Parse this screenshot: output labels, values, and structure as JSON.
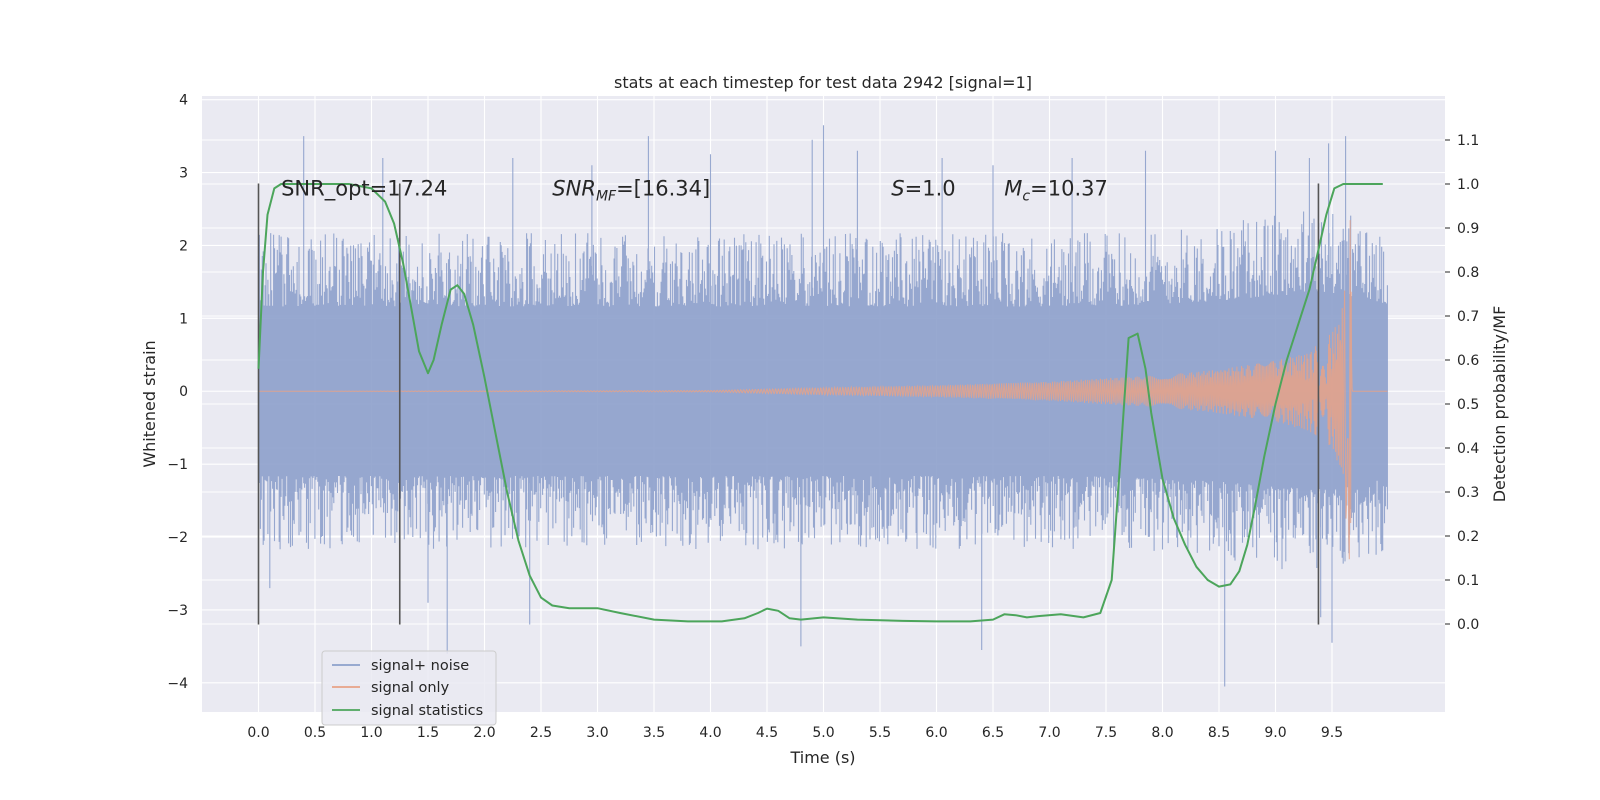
{
  "chart_data": {
    "type": "line",
    "title": "stats at each timestep for test data 2942 [signal=1]",
    "xlabel": "Time (s)",
    "ylabel": "Whitened strain",
    "y2label": "Detection probability/MF",
    "xlim": [
      -0.5,
      10.5
    ],
    "ylim": [
      -4.4,
      4.05
    ],
    "y2lim": [
      -0.2,
      1.2
    ],
    "xticks": [
      "0.0",
      "0.5",
      "1.0",
      "1.5",
      "2.0",
      "2.5",
      "3.0",
      "3.5",
      "4.0",
      "4.5",
      "5.0",
      "5.5",
      "6.0",
      "6.5",
      "7.0",
      "7.5",
      "8.0",
      "8.5",
      "9.0",
      "9.5"
    ],
    "yticks": [
      "4",
      "3",
      "2",
      "1",
      "0",
      "−1",
      "−2",
      "−3",
      "−4"
    ],
    "y2ticks": [
      "1.1",
      "1.0",
      "0.9",
      "0.8",
      "0.7",
      "0.6",
      "0.5",
      "0.4",
      "0.3",
      "0.2",
      "0.1",
      "0.0"
    ],
    "grid": true,
    "legend_position": "lower-left",
    "colors": {
      "noise": "#8da0cb",
      "signal": "#e8a287",
      "stats": "#4ca55b",
      "vline": "#555555",
      "background": "#eaeaf2",
      "grid": "#ffffff"
    },
    "annotations": [
      {
        "label": "SNR_opt=17.24",
        "x": 0.2
      },
      {
        "label": "SNR",
        "sub": "MF",
        "suffix": "=[16.34]",
        "x": 2.6
      },
      {
        "label": "S",
        "suffix": "=1.0",
        "x": 5.6
      },
      {
        "label": "M",
        "sub": "c",
        "suffix": "=10.37",
        "x": 6.6
      }
    ],
    "annotation_y2": 0.99,
    "vlines": [
      0.0,
      1.25,
      9.38
    ],
    "vline_range": [
      -3.2,
      2.85
    ],
    "series": [
      {
        "name": "signal+ noise",
        "t_range": [
          0.0,
          9.99
        ],
        "envelope": [
          [
            0.0,
            1.55
          ],
          [
            0.5,
            1.55
          ],
          [
            1.0,
            1.55
          ],
          [
            1.5,
            1.55
          ],
          [
            2.0,
            1.55
          ],
          [
            2.5,
            1.55
          ],
          [
            3.0,
            1.55
          ],
          [
            3.5,
            1.55
          ],
          [
            4.0,
            1.55
          ],
          [
            4.5,
            1.55
          ],
          [
            5.0,
            1.55
          ],
          [
            5.5,
            1.55
          ],
          [
            6.0,
            1.55
          ],
          [
            6.5,
            1.55
          ],
          [
            7.0,
            1.55
          ],
          [
            7.5,
            1.55
          ],
          [
            8.0,
            1.6
          ],
          [
            8.5,
            1.65
          ],
          [
            9.0,
            1.75
          ],
          [
            9.5,
            1.8
          ],
          [
            9.99,
            1.6
          ]
        ],
        "spikes": [
          [
            0.4,
            3.5
          ],
          [
            1.1,
            3.2
          ],
          [
            2.25,
            3.2
          ],
          [
            2.95,
            3.1
          ],
          [
            3.45,
            3.5
          ],
          [
            4.0,
            3.25
          ],
          [
            4.9,
            3.45
          ],
          [
            5.0,
            3.65
          ],
          [
            5.3,
            3.3
          ],
          [
            6.05,
            3.2
          ],
          [
            6.5,
            3.1
          ],
          [
            7.2,
            3.2
          ],
          [
            7.85,
            3.3
          ],
          [
            9.0,
            3.3
          ],
          [
            9.3,
            3.2
          ],
          [
            9.47,
            3.4
          ],
          [
            9.62,
            3.5
          ],
          [
            1.67,
            -3.6
          ],
          [
            2.4,
            -3.2
          ],
          [
            4.8,
            -3.5
          ],
          [
            6.4,
            -3.55
          ],
          [
            8.55,
            -4.05
          ],
          [
            9.5,
            -3.45
          ],
          [
            9.4,
            -3.1
          ],
          [
            1.5,
            -2.9
          ],
          [
            0.1,
            -2.7
          ]
        ]
      },
      {
        "name": "signal only",
        "chirp": [
          [
            0.0,
            0.0
          ],
          [
            4.0,
            0.01
          ],
          [
            5.0,
            0.05
          ],
          [
            6.0,
            0.08
          ],
          [
            7.0,
            0.13
          ],
          [
            7.5,
            0.18
          ],
          [
            8.0,
            0.22
          ],
          [
            8.5,
            0.3
          ],
          [
            9.0,
            0.42
          ],
          [
            9.3,
            0.55
          ],
          [
            9.5,
            0.8
          ],
          [
            9.6,
            1.2
          ],
          [
            9.66,
            2.6
          ],
          [
            9.68,
            0.0
          ],
          [
            9.99,
            0.0
          ]
        ]
      },
      {
        "name": "signal statistics",
        "x": [
          0.0,
          0.04,
          0.08,
          0.14,
          0.2,
          0.3,
          0.5,
          0.8,
          1.0,
          1.12,
          1.2,
          1.28,
          1.35,
          1.42,
          1.5,
          1.55,
          1.62,
          1.7,
          1.76,
          1.82,
          1.9,
          2.0,
          2.1,
          2.2,
          2.3,
          2.4,
          2.5,
          2.6,
          2.75,
          3.0,
          3.2,
          3.5,
          3.8,
          4.1,
          4.3,
          4.42,
          4.5,
          4.6,
          4.7,
          4.8,
          5.0,
          5.3,
          5.7,
          6.0,
          6.3,
          6.5,
          6.6,
          6.7,
          6.8,
          6.9,
          7.1,
          7.3,
          7.45,
          7.55,
          7.62,
          7.7,
          7.78,
          7.85,
          7.9,
          8.0,
          8.1,
          8.2,
          8.3,
          8.4,
          8.5,
          8.6,
          8.68,
          8.75,
          8.82,
          8.9,
          9.0,
          9.1,
          9.2,
          9.3,
          9.38,
          9.45,
          9.52,
          9.6,
          9.7,
          9.8,
          9.95
        ],
        "values": [
          0.58,
          0.8,
          0.93,
          0.99,
          1.0,
          1.0,
          1.0,
          1.0,
          0.99,
          0.96,
          0.91,
          0.82,
          0.72,
          0.62,
          0.57,
          0.6,
          0.68,
          0.76,
          0.77,
          0.75,
          0.68,
          0.56,
          0.43,
          0.3,
          0.19,
          0.11,
          0.06,
          0.042,
          0.036,
          0.036,
          0.025,
          0.01,
          0.006,
          0.006,
          0.013,
          0.025,
          0.035,
          0.03,
          0.013,
          0.01,
          0.015,
          0.01,
          0.007,
          0.006,
          0.006,
          0.01,
          0.022,
          0.02,
          0.015,
          0.018,
          0.022,
          0.015,
          0.025,
          0.1,
          0.35,
          0.65,
          0.66,
          0.58,
          0.48,
          0.33,
          0.24,
          0.18,
          0.13,
          0.1,
          0.085,
          0.09,
          0.12,
          0.18,
          0.27,
          0.38,
          0.5,
          0.6,
          0.68,
          0.76,
          0.85,
          0.93,
          0.99,
          1.0,
          1.0,
          1.0,
          1.0
        ]
      }
    ]
  }
}
